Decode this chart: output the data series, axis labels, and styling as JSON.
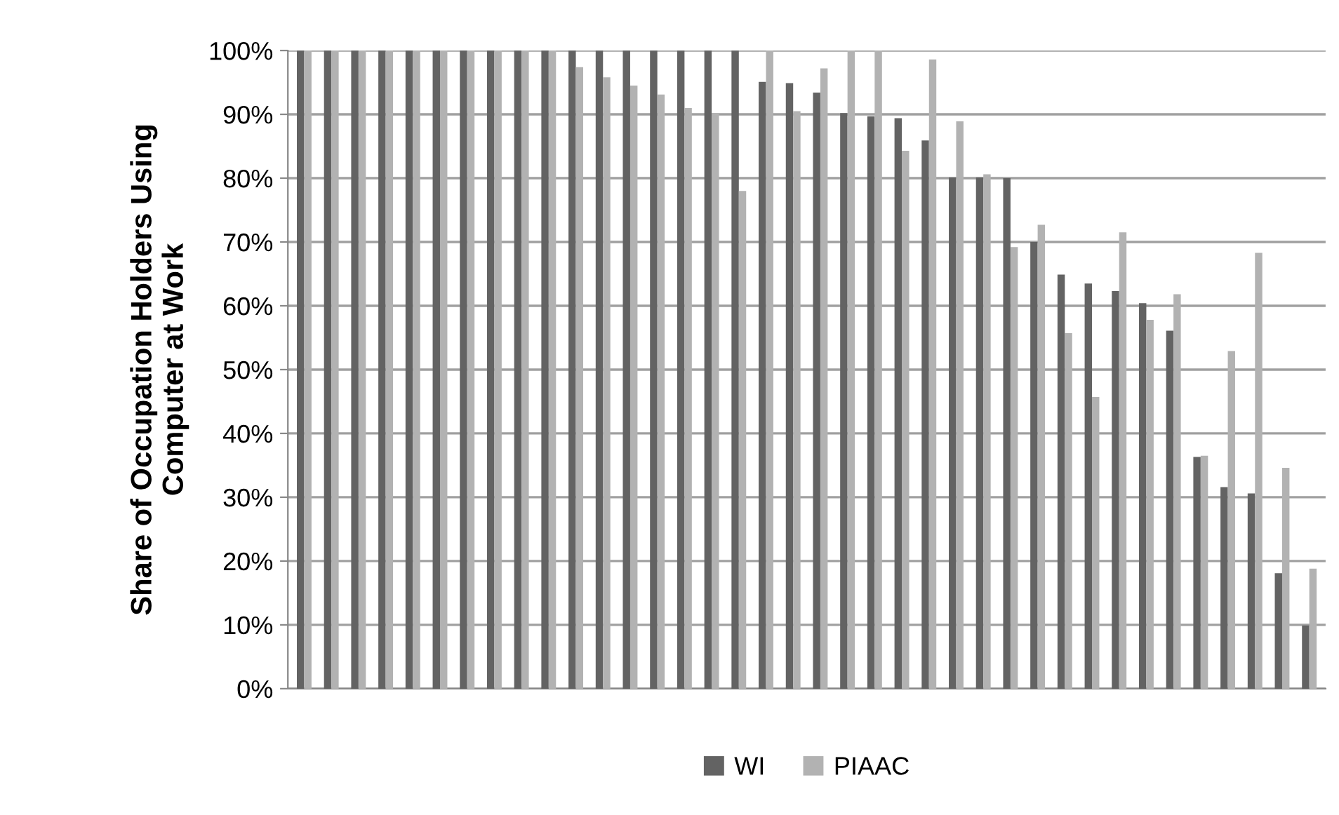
{
  "chart_data": {
    "type": "bar",
    "ylabel": "Share of Occupation Holders Using\nComputer at Work",
    "categories": [
      null,
      null,
      null,
      null,
      null,
      null,
      null,
      null,
      null,
      null,
      null,
      null,
      null,
      null,
      null,
      null,
      null,
      null,
      null,
      null,
      null,
      null,
      null,
      null,
      null,
      null,
      null,
      null,
      null,
      null,
      null,
      null,
      null,
      null,
      null,
      null,
      null,
      null
    ],
    "series": [
      {
        "name": "WI",
        "color": "#636363",
        "values": [
          100,
          100,
          100,
          100,
          100,
          100,
          100,
          100,
          100,
          100,
          100,
          100,
          100,
          100,
          100,
          100,
          100,
          95.1,
          94.9,
          93.4,
          90.2,
          89.7,
          89.4,
          85.9,
          80.1,
          80.1,
          80.0,
          70.0,
          64.9,
          63.5,
          62.3,
          60.4,
          56.1,
          36.3,
          31.6,
          30.6,
          18.1,
          9.9
        ]
      },
      {
        "name": "PIAAC",
        "color": "#b2b2b2",
        "values": [
          100,
          100,
          100,
          100,
          100,
          100,
          100,
          100,
          100,
          100,
          97.4,
          95.8,
          94.5,
          93.1,
          91.0,
          90.2,
          78.0,
          100,
          90.5,
          97.2,
          100,
          100,
          84.3,
          98.6,
          88.9,
          80.6,
          69.2,
          72.7,
          55.7,
          45.7,
          71.5,
          57.8,
          61.8,
          36.5,
          52.9,
          68.3,
          34.6,
          18.8
        ]
      }
    ],
    "ylim": [
      0,
      100
    ],
    "yticks": [
      {
        "value": 0,
        "label": "0%"
      },
      {
        "value": 10,
        "label": "10%"
      },
      {
        "value": 20,
        "label": "20%"
      },
      {
        "value": 30,
        "label": "30%"
      },
      {
        "value": 40,
        "label": "40%"
      },
      {
        "value": 50,
        "label": "50%"
      },
      {
        "value": 60,
        "label": "60%"
      },
      {
        "value": 70,
        "label": "70%"
      },
      {
        "value": 80,
        "label": "80%"
      },
      {
        "value": 90,
        "label": "90%"
      },
      {
        "value": 100,
        "label": "100%"
      }
    ],
    "grid": "y",
    "legend": "bottom",
    "tick_labels": "y"
  }
}
